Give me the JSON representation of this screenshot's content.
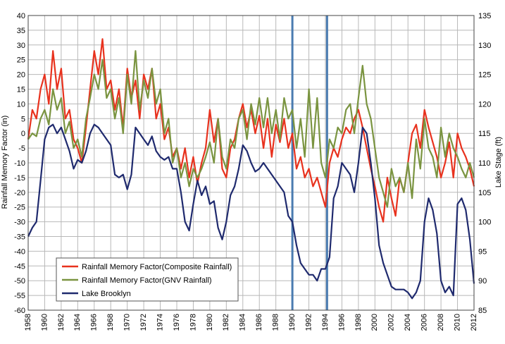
{
  "chart_data": {
    "type": "line",
    "title": "",
    "ylabel_left": "Rainfall Memory Factor (in)",
    "ylabel_right": "Lake Stage (ft)",
    "xlabel": "",
    "xlim": [
      1958,
      2012
    ],
    "ylim_left": [
      -60,
      40
    ],
    "ylim_right": [
      85,
      135
    ],
    "x_ticks": [
      1958,
      1960,
      1962,
      1964,
      1966,
      1968,
      1970,
      1972,
      1974,
      1976,
      1978,
      1980,
      1982,
      1984,
      1986,
      1988,
      1990,
      1992,
      1994,
      1996,
      1998,
      2000,
      2002,
      2004,
      2006,
      2008,
      2010,
      2012
    ],
    "x_tick_labels": [
      "1958",
      "1960",
      "1962",
      "1964",
      "1966",
      "1968",
      "1970",
      "1972",
      "1974",
      "1976",
      "1978",
      "1980",
      "1982",
      "1984",
      "1986",
      "1988",
      "1990",
      "1992",
      "1994",
      "1996",
      "1998",
      "2000",
      "2002",
      "2004",
      "2006",
      "2008",
      "2010",
      "2012"
    ],
    "y_left_ticks": [
      40,
      35,
      30,
      25,
      20,
      15,
      10,
      5,
      0,
      -5,
      -10,
      -15,
      -20,
      -25,
      -30,
      -35,
      -40,
      -45,
      -50,
      -55,
      -60
    ],
    "y_left_tick_labels": [
      "40",
      "35",
      "30",
      "25",
      "20",
      "15",
      "10",
      "5",
      "0",
      "-5",
      "-10",
      "-15",
      "-20",
      "-25",
      "-30",
      "-35",
      "-40",
      "-45",
      "-50",
      "-55",
      "-60"
    ],
    "y_right_ticks": [
      135,
      130,
      125,
      120,
      115,
      110,
      105,
      100,
      95,
      90,
      85
    ],
    "y_right_tick_labels": [
      "135",
      "130",
      "125",
      "120",
      "115",
      "110",
      "105",
      "100",
      "95",
      "90",
      "85"
    ],
    "grid": true,
    "legend_position": "bottom-left",
    "vertical_markers": [
      1990,
      1994.2
    ],
    "marker_color": "#4a7bb0",
    "series": [
      {
        "name": "Rainfall Memory Factor(Composite Rainfall)",
        "axis": "left",
        "color": "#e8321e",
        "x": [
          1958,
          1958.5,
          1959,
          1959.5,
          1960,
          1960.5,
          1961,
          1961.5,
          1962,
          1962.5,
          1963,
          1963.5,
          1964,
          1964.5,
          1965,
          1965.5,
          1966,
          1966.5,
          1967,
          1967.5,
          1968,
          1968.5,
          1969,
          1969.5,
          1970,
          1970.5,
          1971,
          1971.5,
          1972,
          1972.5,
          1973,
          1973.5,
          1974,
          1974.5,
          1975,
          1975.5,
          1976,
          1976.5,
          1977,
          1977.5,
          1978,
          1978.5,
          1979,
          1979.5,
          1980,
          1980.5,
          1981,
          1981.5,
          1982,
          1982.5,
          1983,
          1983.5,
          1984,
          1984.5,
          1985,
          1985.5,
          1986,
          1986.5,
          1987,
          1987.5,
          1988,
          1988.5,
          1989,
          1989.5,
          1990,
          1990.5,
          1991,
          1991.5,
          1992,
          1992.5,
          1993,
          1993.5,
          1994,
          1994.5,
          1995,
          1995.5,
          1996,
          1996.5,
          1997,
          1997.5,
          1998,
          1998.5,
          1999,
          1999.5,
          2000,
          2000.5,
          2001,
          2001.5,
          2002,
          2002.5,
          2003,
          2003.5,
          2004,
          2004.5,
          2005,
          2005.5,
          2006,
          2006.5,
          2007,
          2007.5,
          2008,
          2008.5,
          2009,
          2009.5,
          2010,
          2010.5,
          2011,
          2011.5,
          2012
        ],
        "values": [
          -2,
          8,
          5,
          15,
          20,
          10,
          28,
          15,
          22,
          5,
          8,
          -2,
          -5,
          -10,
          2,
          15,
          28,
          20,
          32,
          15,
          18,
          8,
          15,
          2,
          22,
          12,
          18,
          5,
          20,
          15,
          22,
          5,
          10,
          -2,
          2,
          -8,
          -5,
          -12,
          -5,
          -15,
          -8,
          -17,
          -10,
          -5,
          8,
          -3,
          5,
          -12,
          -15,
          -5,
          -2,
          5,
          10,
          2,
          8,
          0,
          6,
          -5,
          5,
          -8,
          3,
          -3,
          5,
          -5,
          0,
          -12,
          -8,
          -15,
          -12,
          -18,
          -15,
          -20,
          -25,
          -10,
          -5,
          -8,
          -2,
          2,
          0,
          5,
          8,
          2,
          -5,
          -12,
          -18,
          -25,
          -30,
          -15,
          -22,
          -28,
          -15,
          -20,
          -10,
          0,
          3,
          -5,
          8,
          2,
          -3,
          -8,
          -15,
          -10,
          -3,
          -15,
          0,
          -5,
          -8,
          -12,
          -18
        ]
      },
      {
        "name": "Rainfall Memory Factor(GNV Rainfall)",
        "axis": "left",
        "color": "#7a9440",
        "x": [
          1958,
          1958.5,
          1959,
          1959.5,
          1960,
          1960.5,
          1961,
          1961.5,
          1962,
          1962.5,
          1963,
          1963.5,
          1964,
          1964.5,
          1965,
          1965.5,
          1966,
          1966.5,
          1967,
          1967.5,
          1968,
          1968.5,
          1969,
          1969.5,
          1970,
          1970.5,
          1971,
          1971.5,
          1972,
          1972.5,
          1973,
          1973.5,
          1974,
          1974.5,
          1975,
          1975.5,
          1976,
          1976.5,
          1977,
          1977.5,
          1978,
          1978.5,
          1979,
          1979.5,
          1980,
          1980.5,
          1981,
          1981.5,
          1982,
          1982.5,
          1983,
          1983.5,
          1984,
          1984.5,
          1985,
          1985.5,
          1986,
          1986.5,
          1987,
          1987.5,
          1988,
          1988.5,
          1989,
          1989.5,
          1990,
          1990.5,
          1991,
          1991.5,
          1992,
          1992.5,
          1993,
          1993.5,
          1994,
          1994.5,
          1995,
          1995.5,
          1996,
          1996.5,
          1997,
          1997.5,
          1998,
          1998.5,
          1999,
          1999.5,
          2000,
          2000.5,
          2001,
          2001.5,
          2002,
          2002.5,
          2003,
          2003.5,
          2004,
          2004.5,
          2005,
          2005.5,
          2006,
          2006.5,
          2007,
          2007.5,
          2008,
          2008.5,
          2009,
          2009.5,
          2010,
          2010.5,
          2011,
          2011.5,
          2012
        ],
        "values": [
          -2,
          0,
          -1,
          5,
          8,
          3,
          15,
          8,
          12,
          0,
          4,
          -5,
          -2,
          -8,
          5,
          12,
          20,
          15,
          25,
          12,
          15,
          5,
          12,
          0,
          20,
          10,
          28,
          8,
          18,
          12,
          22,
          10,
          15,
          0,
          5,
          -10,
          -5,
          -15,
          -10,
          -18,
          -12,
          -15,
          -12,
          -8,
          -3,
          -10,
          5,
          -8,
          -12,
          -2,
          -5,
          5,
          8,
          -2,
          10,
          3,
          12,
          2,
          12,
          0,
          8,
          -2,
          12,
          5,
          8,
          -5,
          5,
          -8,
          15,
          -5,
          12,
          -10,
          -15,
          -2,
          -5,
          2,
          0,
          8,
          10,
          0,
          12,
          23,
          10,
          5,
          -5,
          -15,
          -20,
          -25,
          -12,
          -18,
          -15,
          -20,
          -10,
          -22,
          -2,
          -12,
          5,
          -5,
          -8,
          -15,
          2,
          -8,
          0,
          -5,
          -8,
          -12,
          -15,
          -10,
          -15
        ]
      },
      {
        "name": "Lake Brooklyn",
        "axis": "right",
        "color": "#1f2a6e",
        "x": [
          1958,
          1958.5,
          1959,
          1959.5,
          1960,
          1960.5,
          1961,
          1961.5,
          1962,
          1962.5,
          1963,
          1963.5,
          1964,
          1964.5,
          1965,
          1965.5,
          1966,
          1966.5,
          1967,
          1967.5,
          1968,
          1968.5,
          1969,
          1969.5,
          1970,
          1970.5,
          1971,
          1971.5,
          1972,
          1972.5,
          1973,
          1973.5,
          1974,
          1974.5,
          1975,
          1975.5,
          1976,
          1976.5,
          1977,
          1977.5,
          1978,
          1978.5,
          1979,
          1979.5,
          1980,
          1980.5,
          1981,
          1981.5,
          1982,
          1982.5,
          1983,
          1983.5,
          1984,
          1984.5,
          1985,
          1985.5,
          1986,
          1986.5,
          1987,
          1987.5,
          1988,
          1988.5,
          1989,
          1989.5,
          1990,
          1990.5,
          1991,
          1991.5,
          1992,
          1992.5,
          1993,
          1993.5,
          1994,
          1994.5,
          1995,
          1995.5,
          1996,
          1996.5,
          1997,
          1997.5,
          1998,
          1998.5,
          1999,
          1999.5,
          2000,
          2000.5,
          2001,
          2001.5,
          2002,
          2002.5,
          2003,
          2003.5,
          2004,
          2004.5,
          2005,
          2005.5,
          2006,
          2006.5,
          2007,
          2007.5,
          2008,
          2008.5,
          2009,
          2009.5,
          2010,
          2010.5,
          2011,
          2011.5,
          2012
        ],
        "values": [
          97.5,
          99,
          100,
          107,
          114,
          116,
          116.5,
          115,
          116,
          114,
          112,
          109,
          110.5,
          110,
          112,
          115,
          116.5,
          116,
          115,
          114,
          113,
          108,
          107.5,
          108,
          105.5,
          108,
          116,
          115,
          114,
          113,
          114.5,
          112,
          111,
          110.5,
          111,
          109,
          109,
          105,
          100,
          98.5,
          103,
          107,
          104.5,
          106,
          103,
          103.5,
          99,
          97,
          100,
          104.5,
          106,
          109,
          113,
          112,
          110,
          108.5,
          109,
          110,
          109,
          108,
          107,
          106,
          105,
          101,
          100,
          96,
          93,
          92,
          91,
          91,
          90,
          92,
          92,
          94,
          104,
          106,
          110,
          109,
          108,
          105,
          110,
          116,
          115,
          110,
          104,
          96,
          93,
          91,
          89,
          88.5,
          88.5,
          88.5,
          88,
          87,
          88,
          90,
          100,
          104,
          102,
          98,
          90,
          88,
          89,
          87.5,
          103,
          104,
          102,
          97,
          89.5
        ]
      }
    ]
  }
}
